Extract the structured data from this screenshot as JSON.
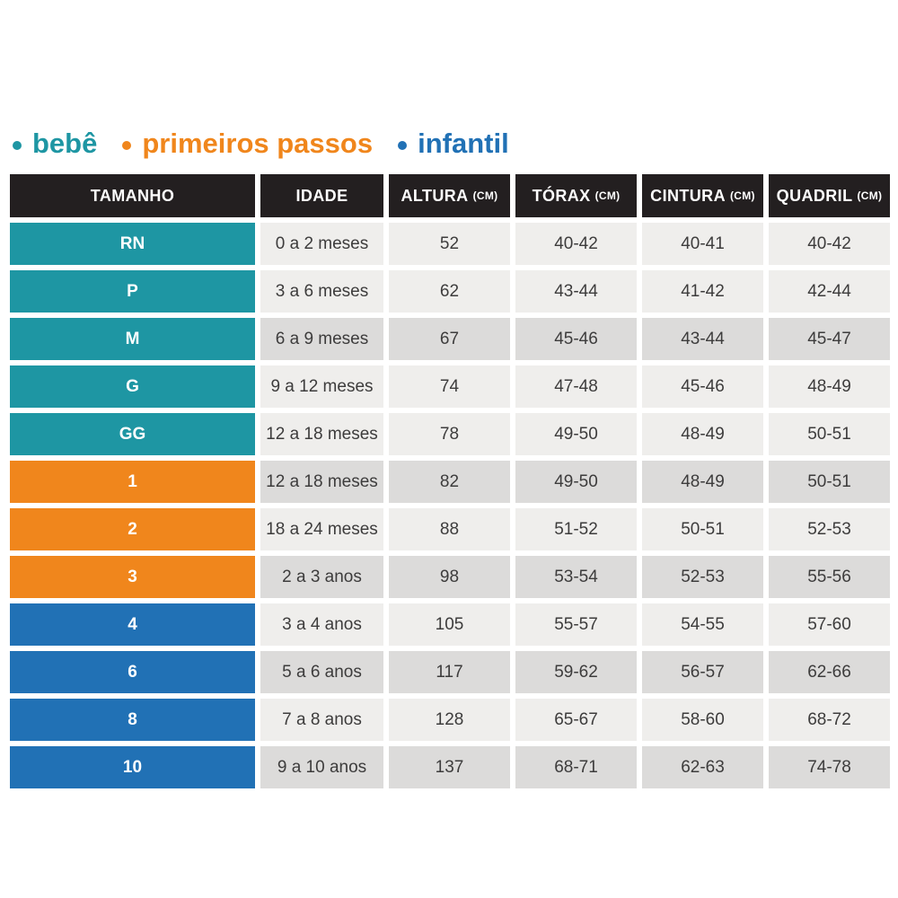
{
  "legend": {
    "items": [
      {
        "label": "bebê",
        "color": "#1e96a3"
      },
      {
        "label": "primeiros passos",
        "color": "#f0861c"
      },
      {
        "label": "infantil",
        "color": "#2171b5"
      }
    ]
  },
  "colors": {
    "header_bg": "#231f20",
    "header_text": "#ffffff",
    "row_light": "#efeeec",
    "row_dark": "#dcdbda",
    "cell_text": "#3d3c3c",
    "groups": {
      "bebe": "#1e96a3",
      "primeiros_passos": "#f0861c",
      "infantil": "#2171b5"
    }
  },
  "table": {
    "columns": [
      {
        "label": "TAMANHO",
        "unit": ""
      },
      {
        "label": "IDADE",
        "unit": ""
      },
      {
        "label": "ALTURA",
        "unit": "(CM)"
      },
      {
        "label": "TÓRAX",
        "unit": "(CM)"
      },
      {
        "label": "CINTURA",
        "unit": "(CM)"
      },
      {
        "label": "QUADRIL",
        "unit": "(CM)"
      }
    ],
    "rows": [
      {
        "size": "RN",
        "group": "bebe",
        "shade": "light",
        "idade": "0 a 2 meses",
        "altura": "52",
        "torax": "40-42",
        "cintura": "40-41",
        "quadril": "40-42"
      },
      {
        "size": "P",
        "group": "bebe",
        "shade": "light",
        "idade": "3 a 6 meses",
        "altura": "62",
        "torax": "43-44",
        "cintura": "41-42",
        "quadril": "42-44"
      },
      {
        "size": "M",
        "group": "bebe",
        "shade": "dark",
        "idade": "6 a 9 meses",
        "altura": "67",
        "torax": "45-46",
        "cintura": "43-44",
        "quadril": "45-47"
      },
      {
        "size": "G",
        "group": "bebe",
        "shade": "light",
        "idade": "9 a 12 meses",
        "altura": "74",
        "torax": "47-48",
        "cintura": "45-46",
        "quadril": "48-49"
      },
      {
        "size": "GG",
        "group": "bebe",
        "shade": "light",
        "idade": "12 a 18 meses",
        "altura": "78",
        "torax": "49-50",
        "cintura": "48-49",
        "quadril": "50-51"
      },
      {
        "size": "1",
        "group": "primeiros_passos",
        "shade": "dark",
        "idade": "12 a 18 meses",
        "altura": "82",
        "torax": "49-50",
        "cintura": "48-49",
        "quadril": "50-51"
      },
      {
        "size": "2",
        "group": "primeiros_passos",
        "shade": "light",
        "idade": "18 a 24 meses",
        "altura": "88",
        "torax": "51-52",
        "cintura": "50-51",
        "quadril": "52-53"
      },
      {
        "size": "3",
        "group": "primeiros_passos",
        "shade": "dark",
        "idade": "2 a 3 anos",
        "altura": "98",
        "torax": "53-54",
        "cintura": "52-53",
        "quadril": "55-56"
      },
      {
        "size": "4",
        "group": "infantil",
        "shade": "light",
        "idade": "3 a 4 anos",
        "altura": "105",
        "torax": "55-57",
        "cintura": "54-55",
        "quadril": "57-60"
      },
      {
        "size": "6",
        "group": "infantil",
        "shade": "dark",
        "idade": "5 a 6 anos",
        "altura": "117",
        "torax": "59-62",
        "cintura": "56-57",
        "quadril": "62-66"
      },
      {
        "size": "8",
        "group": "infantil",
        "shade": "light",
        "idade": "7 a 8 anos",
        "altura": "128",
        "torax": "65-67",
        "cintura": "58-60",
        "quadril": "68-72"
      },
      {
        "size": "10",
        "group": "infantil",
        "shade": "dark",
        "idade": "9 a 10 anos",
        "altura": "137",
        "torax": "68-71",
        "cintura": "62-63",
        "quadril": "74-78"
      }
    ]
  },
  "chart_data": {
    "type": "table",
    "title": "",
    "legend_entries": [
      "bebê",
      "primeiros passos",
      "infantil"
    ],
    "columns": [
      "TAMANHO",
      "IDADE",
      "ALTURA (CM)",
      "TÓRAX (CM)",
      "CINTURA (CM)",
      "QUADRIL (CM)"
    ],
    "rows": [
      [
        "RN",
        "0 a 2 meses",
        "52",
        "40-42",
        "40-41",
        "40-42"
      ],
      [
        "P",
        "3 a 6 meses",
        "62",
        "43-44",
        "41-42",
        "42-44"
      ],
      [
        "M",
        "6 a 9 meses",
        "67",
        "45-46",
        "43-44",
        "45-47"
      ],
      [
        "G",
        "9 a 12 meses",
        "74",
        "47-48",
        "45-46",
        "48-49"
      ],
      [
        "GG",
        "12 a 18 meses",
        "78",
        "49-50",
        "48-49",
        "50-51"
      ],
      [
        "1",
        "12 a 18 meses",
        "82",
        "49-50",
        "48-49",
        "50-51"
      ],
      [
        "2",
        "18 a 24 meses",
        "88",
        "51-52",
        "50-51",
        "52-53"
      ],
      [
        "3",
        "2 a 3 anos",
        "98",
        "53-54",
        "52-53",
        "55-56"
      ],
      [
        "4",
        "3 a 4 anos",
        "105",
        "55-57",
        "54-55",
        "57-60"
      ],
      [
        "6",
        "5 a 6 anos",
        "117",
        "59-62",
        "56-57",
        "62-66"
      ],
      [
        "8",
        "7 a 8 anos",
        "128",
        "65-67",
        "58-60",
        "68-72"
      ],
      [
        "10",
        "9 a 10 anos",
        "137",
        "68-71",
        "62-63",
        "74-78"
      ]
    ]
  }
}
